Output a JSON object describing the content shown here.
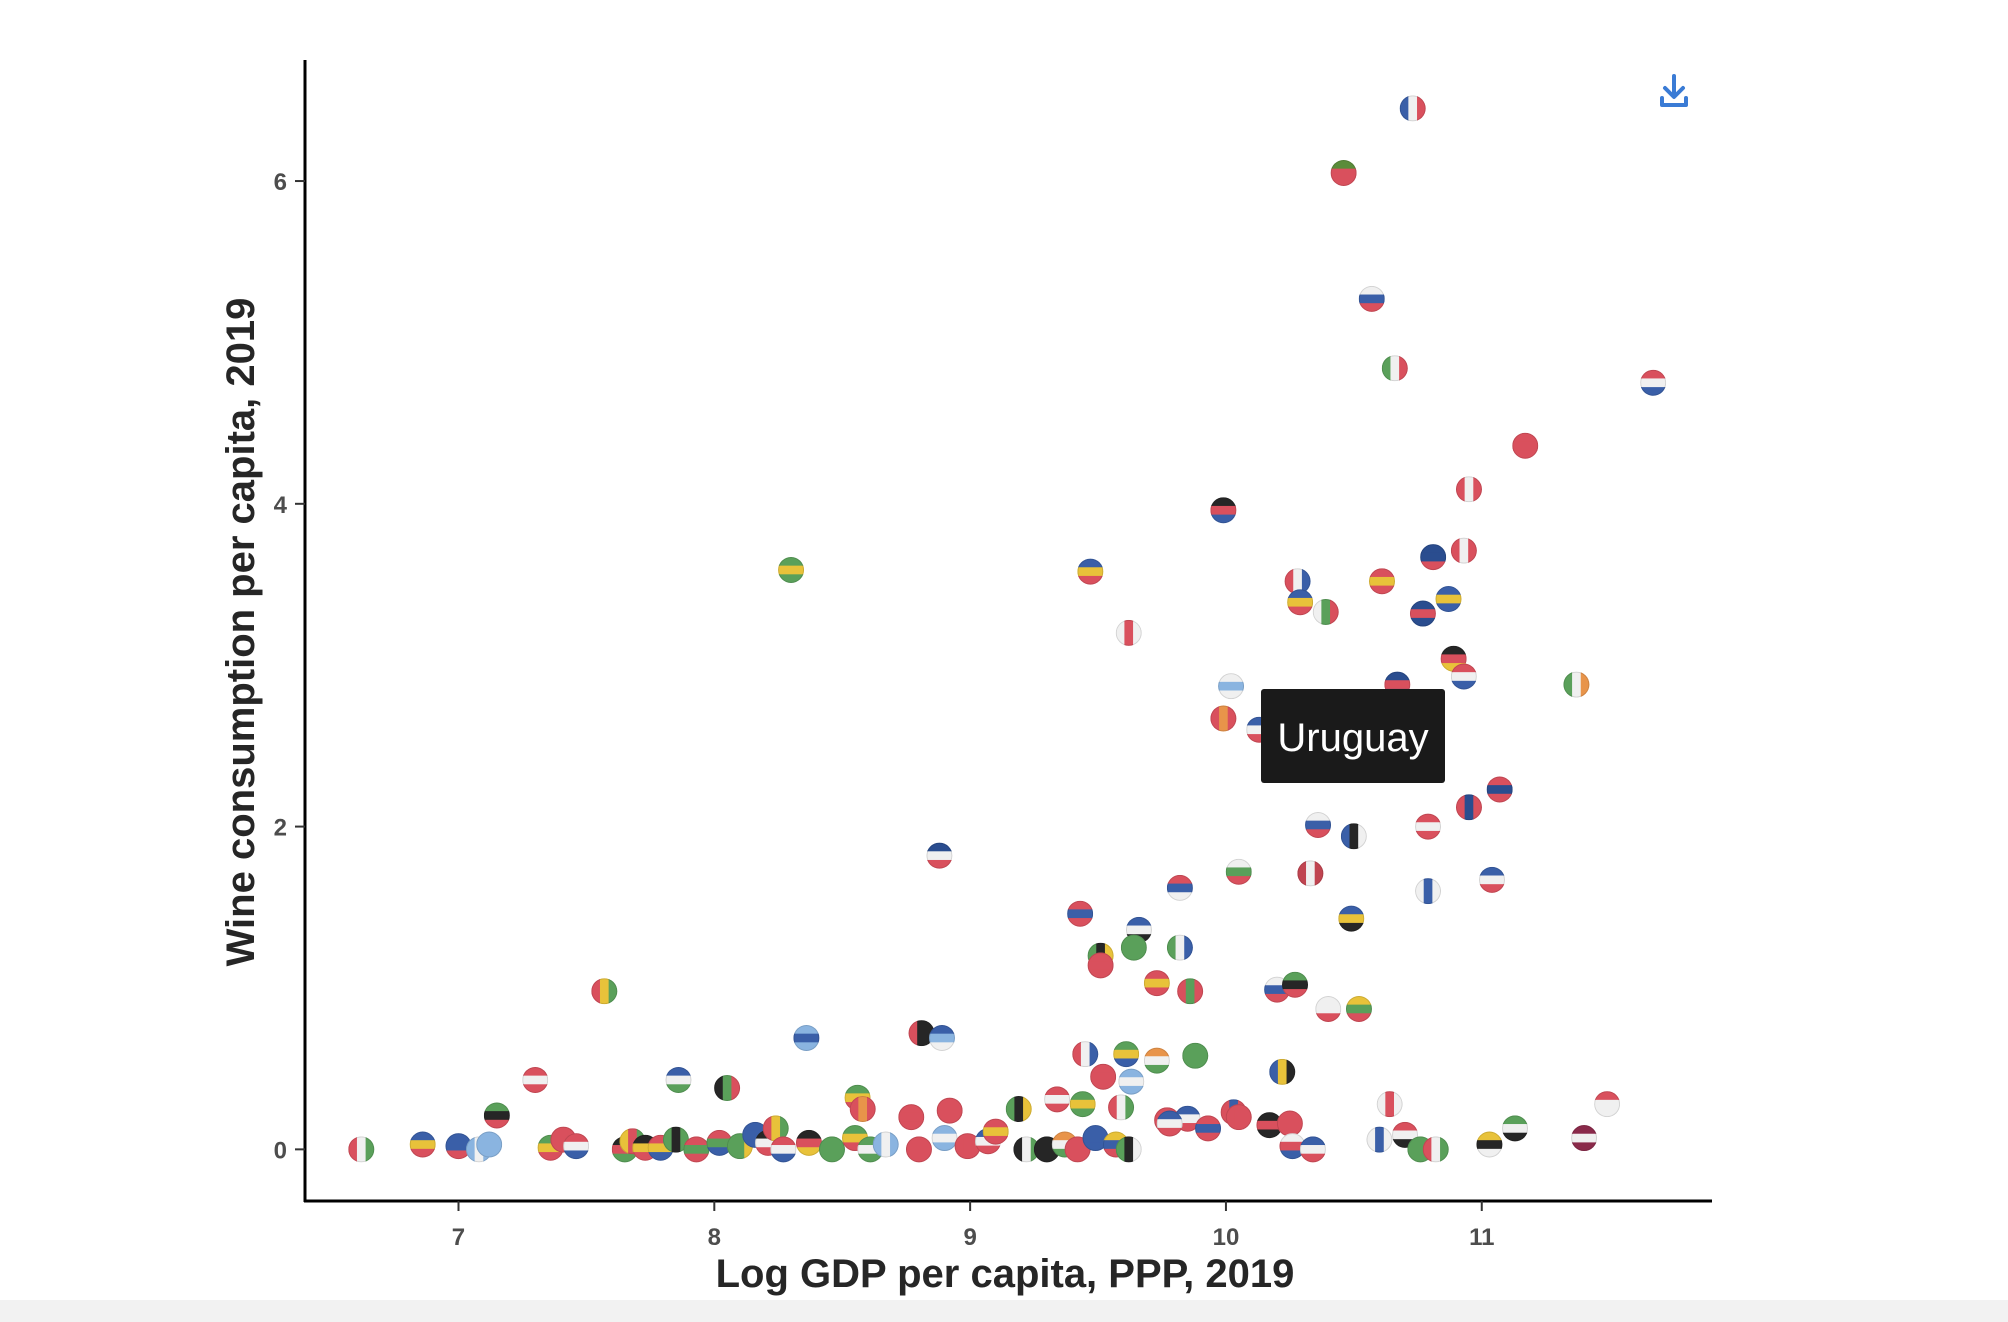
{
  "chart_data": {
    "type": "scatter",
    "title": "",
    "xlabel": "Log GDP per capita, PPP, 2019",
    "ylabel": "Wine consumption per capita, 2019",
    "xlim": [
      6.4,
      11.9
    ],
    "ylim": [
      -0.32,
      6.75
    ],
    "xticks": [
      "7",
      "8",
      "9",
      "10",
      "11"
    ],
    "yticks": [
      "0",
      "2",
      "4",
      "6"
    ],
    "marker": "country-flag",
    "tooltip": {
      "label": "Uruguay",
      "x": 10.5,
      "y": 2.6
    },
    "points": [
      {
        "x": 10.73,
        "y": 6.45,
        "colors": [
          "#3a5fa8",
          "#f0f0f0",
          "#d9505d"
        ]
      },
      {
        "x": 10.46,
        "y": 6.05,
        "colors": [
          "#5a8c3a",
          "#d9505d",
          "#d9505d"
        ]
      },
      {
        "x": 10.57,
        "y": 5.27,
        "colors": [
          "#f0f0f0",
          "#3a5fa8",
          "#d9505d"
        ]
      },
      {
        "x": 10.66,
        "y": 4.84,
        "colors": [
          "#5aa05a",
          "#f0f0f0",
          "#d9505d"
        ]
      },
      {
        "x": 11.67,
        "y": 4.75,
        "colors": [
          "#d9505d",
          "#f0f0f0",
          "#3a5fa8"
        ]
      },
      {
        "x": 11.17,
        "y": 4.36,
        "colors": [
          "#d9505d",
          "#d9505d",
          "#d9505d"
        ]
      },
      {
        "x": 10.95,
        "y": 4.09,
        "colors": [
          "#d9505d",
          "#f0f0f0",
          "#d9505d"
        ]
      },
      {
        "x": 9.99,
        "y": 3.96,
        "colors": [
          "#262626",
          "#d9505d",
          "#3a5fa8"
        ]
      },
      {
        "x": 10.81,
        "y": 3.67,
        "colors": [
          "#2a4d8f",
          "#2a4d8f",
          "#d9505d"
        ]
      },
      {
        "x": 10.93,
        "y": 3.71,
        "colors": [
          "#d9505d",
          "#f0f0f0",
          "#d9505d"
        ]
      },
      {
        "x": 8.3,
        "y": 3.59,
        "colors": [
          "#5aa05a",
          "#e8c23a",
          "#5aa05a"
        ]
      },
      {
        "x": 9.47,
        "y": 3.58,
        "colors": [
          "#3a5fa8",
          "#e8c23a",
          "#d9505d"
        ]
      },
      {
        "x": 10.28,
        "y": 3.52,
        "colors": [
          "#d9505d",
          "#f0f0f0",
          "#3a5fa8"
        ]
      },
      {
        "x": 10.61,
        "y": 3.52,
        "colors": [
          "#d9505d",
          "#e8c23a",
          "#d9505d"
        ]
      },
      {
        "x": 10.29,
        "y": 3.39,
        "colors": [
          "#3a5fa8",
          "#e8c23a",
          "#d9505d"
        ]
      },
      {
        "x": 10.39,
        "y": 3.33,
        "colors": [
          "#f0f0f0",
          "#5aa05a",
          "#d9505d"
        ]
      },
      {
        "x": 10.87,
        "y": 3.41,
        "colors": [
          "#3a5fa8",
          "#e8c23a",
          "#3a5fa8"
        ]
      },
      {
        "x": 10.77,
        "y": 3.32,
        "colors": [
          "#2a4d8f",
          "#d9505d",
          "#2a4d8f"
        ]
      },
      {
        "x": 9.62,
        "y": 3.2,
        "colors": [
          "#f0f0f0",
          "#d9505d",
          "#f0f0f0"
        ]
      },
      {
        "x": 10.89,
        "y": 3.04,
        "colors": [
          "#262626",
          "#d9505d",
          "#e8c23a"
        ]
      },
      {
        "x": 10.93,
        "y": 2.93,
        "colors": [
          "#d9505d",
          "#f0f0f0",
          "#3a5fa8"
        ]
      },
      {
        "x": 11.37,
        "y": 2.88,
        "colors": [
          "#5aa05a",
          "#f0f0f0",
          "#e8944a"
        ]
      },
      {
        "x": 10.67,
        "y": 2.88,
        "colors": [
          "#2a4d8f",
          "#d9505d",
          "#2a4d8f"
        ]
      },
      {
        "x": 10.02,
        "y": 2.87,
        "colors": [
          "#f0f0f0",
          "#8ab4e0",
          "#f0f0f0"
        ]
      },
      {
        "x": 9.99,
        "y": 2.67,
        "colors": [
          "#d9505d",
          "#e8944a",
          "#d9505d"
        ]
      },
      {
        "x": 10.13,
        "y": 2.6,
        "colors": [
          "#3a5fa8",
          "#f0f0f0",
          "#d9505d"
        ]
      },
      {
        "x": 11.07,
        "y": 2.23,
        "colors": [
          "#d9505d",
          "#2a4d8f",
          "#d9505d"
        ]
      },
      {
        "x": 10.95,
        "y": 2.12,
        "colors": [
          "#d9505d",
          "#2a4d8f",
          "#d9505d"
        ]
      },
      {
        "x": 10.36,
        "y": 2.01,
        "colors": [
          "#f0f0f0",
          "#3a5fa8",
          "#d9505d"
        ]
      },
      {
        "x": 10.79,
        "y": 2.0,
        "colors": [
          "#d9505d",
          "#f0f0f0",
          "#d9505d"
        ]
      },
      {
        "x": 10.5,
        "y": 1.94,
        "colors": [
          "#3a5fa8",
          "#262626",
          "#f0f0f0"
        ]
      },
      {
        "x": 8.88,
        "y": 1.82,
        "colors": [
          "#2a4d8f",
          "#f0f0f0",
          "#d9505d"
        ]
      },
      {
        "x": 10.05,
        "y": 1.72,
        "colors": [
          "#f0f0f0",
          "#5aa05a",
          "#d9505d"
        ]
      },
      {
        "x": 10.33,
        "y": 1.71,
        "colors": [
          "#c04450",
          "#f0f0f0",
          "#c04450"
        ]
      },
      {
        "x": 11.04,
        "y": 1.67,
        "colors": [
          "#3a5fa8",
          "#f0f0f0",
          "#d9505d"
        ]
      },
      {
        "x": 9.82,
        "y": 1.62,
        "colors": [
          "#d9505d",
          "#3a5fa8",
          "#f0f0f0"
        ]
      },
      {
        "x": 10.79,
        "y": 1.6,
        "colors": [
          "#f0f0f0",
          "#3a5fa8",
          "#f0f0f0"
        ]
      },
      {
        "x": 9.43,
        "y": 1.46,
        "colors": [
          "#d9505d",
          "#3a5fa8",
          "#d9505d"
        ]
      },
      {
        "x": 9.66,
        "y": 1.36,
        "colors": [
          "#3a5fa8",
          "#f0f0f0",
          "#262626"
        ]
      },
      {
        "x": 9.82,
        "y": 1.25,
        "colors": [
          "#5aa05a",
          "#f0f0f0",
          "#3a5fa8"
        ]
      },
      {
        "x": 10.49,
        "y": 1.43,
        "colors": [
          "#3a5fa8",
          "#e8c23a",
          "#262626"
        ]
      },
      {
        "x": 9.64,
        "y": 1.25,
        "colors": [
          "#5aa05a",
          "#5aa05a",
          "#5aa05a"
        ]
      },
      {
        "x": 9.51,
        "y": 1.2,
        "colors": [
          "#5aa05a",
          "#262626",
          "#e8c23a"
        ]
      },
      {
        "x": 9.51,
        "y": 1.14,
        "colors": [
          "#d9505d",
          "#d9505d",
          "#d9505d"
        ]
      },
      {
        "x": 9.73,
        "y": 1.03,
        "colors": [
          "#d9505d",
          "#e8c23a",
          "#d9505d"
        ]
      },
      {
        "x": 9.86,
        "y": 0.98,
        "colors": [
          "#d9505d",
          "#5aa05a",
          "#d9505d"
        ]
      },
      {
        "x": 10.2,
        "y": 0.99,
        "colors": [
          "#f0f0f0",
          "#3a5fa8",
          "#d9505d"
        ]
      },
      {
        "x": 10.27,
        "y": 1.02,
        "colors": [
          "#5aa05a",
          "#262626",
          "#d9505d"
        ]
      },
      {
        "x": 7.57,
        "y": 0.98,
        "colors": [
          "#d9505d",
          "#e8c23a",
          "#5aa05a"
        ]
      },
      {
        "x": 10.4,
        "y": 0.87,
        "colors": [
          "#f0f0f0",
          "#f0f0f0",
          "#d9505d"
        ]
      },
      {
        "x": 10.52,
        "y": 0.87,
        "colors": [
          "#e8c23a",
          "#5aa05a",
          "#d9505d"
        ]
      },
      {
        "x": 8.81,
        "y": 0.72,
        "colors": [
          "#d9505d",
          "#262626",
          "#262626"
        ]
      },
      {
        "x": 8.89,
        "y": 0.69,
        "colors": [
          "#3a5fa8",
          "#8ab4e0",
          "#f0f0f0"
        ]
      },
      {
        "x": 8.36,
        "y": 0.69,
        "colors": [
          "#8ab4e0",
          "#3a5fa8",
          "#8ab4e0"
        ]
      },
      {
        "x": 9.45,
        "y": 0.59,
        "colors": [
          "#d9505d",
          "#f0f0f0",
          "#3a5fa8"
        ]
      },
      {
        "x": 9.61,
        "y": 0.59,
        "colors": [
          "#5aa05a",
          "#e8c23a",
          "#3a5fa8"
        ]
      },
      {
        "x": 9.73,
        "y": 0.55,
        "colors": [
          "#e8944a",
          "#f0f0f0",
          "#5aa05a"
        ]
      },
      {
        "x": 9.88,
        "y": 0.58,
        "colors": [
          "#5aa05a",
          "#5aa05a",
          "#5aa05a"
        ]
      },
      {
        "x": 7.3,
        "y": 0.43,
        "colors": [
          "#d9505d",
          "#f0f0f0",
          "#d9505d"
        ]
      },
      {
        "x": 7.86,
        "y": 0.43,
        "colors": [
          "#3a5fa8",
          "#f0f0f0",
          "#5aa05a"
        ]
      },
      {
        "x": 8.05,
        "y": 0.38,
        "colors": [
          "#262626",
          "#5aa05a",
          "#d9505d"
        ]
      },
      {
        "x": 9.52,
        "y": 0.45,
        "colors": [
          "#d9505d",
          "#d9505d",
          "#d9505d"
        ]
      },
      {
        "x": 9.63,
        "y": 0.42,
        "colors": [
          "#8ab4e0",
          "#f0f0f0",
          "#8ab4e0"
        ]
      },
      {
        "x": 10.22,
        "y": 0.48,
        "colors": [
          "#3a5fa8",
          "#e8c23a",
          "#262626"
        ]
      },
      {
        "x": 7.15,
        "y": 0.21,
        "colors": [
          "#5aa05a",
          "#262626",
          "#d9505d"
        ]
      },
      {
        "x": 8.56,
        "y": 0.32,
        "colors": [
          "#5aa05a",
          "#e8c23a",
          "#d9505d"
        ]
      },
      {
        "x": 8.58,
        "y": 0.25,
        "colors": [
          "#d9505d",
          "#e8944a",
          "#d9505d"
        ]
      },
      {
        "x": 8.77,
        "y": 0.2,
        "colors": [
          "#d9505d",
          "#d9505d",
          "#d9505d"
        ]
      },
      {
        "x": 8.92,
        "y": 0.24,
        "colors": [
          "#d9505d",
          "#d9505d",
          "#d9505d"
        ]
      },
      {
        "x": 9.19,
        "y": 0.25,
        "colors": [
          "#5aa05a",
          "#262626",
          "#e8c23a"
        ]
      },
      {
        "x": 9.34,
        "y": 0.31,
        "colors": [
          "#d9505d",
          "#f0f0f0",
          "#d9505d"
        ]
      },
      {
        "x": 9.44,
        "y": 0.28,
        "colors": [
          "#5aa05a",
          "#e8c23a",
          "#5aa05a"
        ]
      },
      {
        "x": 9.59,
        "y": 0.26,
        "colors": [
          "#d9505d",
          "#f0f0f0",
          "#5aa05a"
        ]
      },
      {
        "x": 9.77,
        "y": 0.18,
        "colors": [
          "#d9505d",
          "#d9505d",
          "#d9505d"
        ]
      },
      {
        "x": 9.85,
        "y": 0.19,
        "colors": [
          "#3a5fa8",
          "#f0f0f0",
          "#d9505d"
        ]
      },
      {
        "x": 10.03,
        "y": 0.23,
        "colors": [
          "#d9505d",
          "#3a5fa8",
          "#d9505d"
        ]
      },
      {
        "x": 10.17,
        "y": 0.15,
        "colors": [
          "#262626",
          "#d9505d",
          "#262626"
        ]
      },
      {
        "x": 10.25,
        "y": 0.16,
        "colors": [
          "#d9505d",
          "#d9505d",
          "#d9505d"
        ]
      },
      {
        "x": 10.64,
        "y": 0.28,
        "colors": [
          "#f0f0f0",
          "#d9505d",
          "#f0f0f0"
        ]
      },
      {
        "x": 11.13,
        "y": 0.13,
        "colors": [
          "#5aa05a",
          "#f0f0f0",
          "#262626"
        ]
      },
      {
        "x": 11.49,
        "y": 0.28,
        "colors": [
          "#d9505d",
          "#f0f0f0",
          "#f0f0f0"
        ]
      },
      {
        "x": 6.62,
        "y": 0.0,
        "colors": [
          "#d9505d",
          "#f0f0f0",
          "#5aa05a"
        ]
      },
      {
        "x": 6.86,
        "y": 0.03,
        "colors": [
          "#3a5fa8",
          "#e8c23a",
          "#d9505d"
        ]
      },
      {
        "x": 7.0,
        "y": 0.02,
        "colors": [
          "#3a5fa8",
          "#3a5fa8",
          "#d9505d"
        ]
      },
      {
        "x": 7.08,
        "y": 0.0,
        "colors": [
          "#8ab4e0",
          "#f0f0f0",
          "#8ab4e0"
        ]
      },
      {
        "x": 7.12,
        "y": 0.03,
        "colors": [
          "#8ab4e0",
          "#8ab4e0",
          "#8ab4e0"
        ]
      },
      {
        "x": 7.36,
        "y": 0.01,
        "colors": [
          "#5aa05a",
          "#e8c23a",
          "#d9505d"
        ]
      },
      {
        "x": 7.41,
        "y": 0.06,
        "colors": [
          "#d9505d",
          "#d9505d",
          "#d9505d"
        ]
      },
      {
        "x": 7.46,
        "y": 0.02,
        "colors": [
          "#d9505d",
          "#f0f0f0",
          "#3a5fa8"
        ]
      },
      {
        "x": 7.65,
        "y": 0.0,
        "colors": [
          "#262626",
          "#d9505d",
          "#5aa05a"
        ]
      },
      {
        "x": 7.68,
        "y": 0.05,
        "colors": [
          "#e8c23a",
          "#d9505d",
          "#5aa05a"
        ]
      },
      {
        "x": 7.73,
        "y": 0.01,
        "colors": [
          "#262626",
          "#e8c23a",
          "#d9505d"
        ]
      },
      {
        "x": 7.79,
        "y": 0.01,
        "colors": [
          "#d9505d",
          "#e8c23a",
          "#3a5fa8"
        ]
      },
      {
        "x": 7.85,
        "y": 0.06,
        "colors": [
          "#5aa05a",
          "#262626",
          "#5aa05a"
        ]
      },
      {
        "x": 7.93,
        "y": 0.0,
        "colors": [
          "#d9505d",
          "#5aa05a",
          "#d9505d"
        ]
      },
      {
        "x": 8.02,
        "y": 0.04,
        "colors": [
          "#d9505d",
          "#5aa05a",
          "#3a5fa8"
        ]
      },
      {
        "x": 8.1,
        "y": 0.02,
        "colors": [
          "#5aa05a",
          "#5aa05a",
          "#e8c23a"
        ]
      },
      {
        "x": 8.16,
        "y": 0.09,
        "colors": [
          "#3a5fa8",
          "#3a5fa8",
          "#3a5fa8"
        ]
      },
      {
        "x": 8.21,
        "y": 0.04,
        "colors": [
          "#262626",
          "#f0f0f0",
          "#d9505d"
        ]
      },
      {
        "x": 8.24,
        "y": 0.13,
        "colors": [
          "#d9505d",
          "#e8c23a",
          "#5aa05a"
        ]
      },
      {
        "x": 8.27,
        "y": 0.0,
        "colors": [
          "#d9505d",
          "#f0f0f0",
          "#3a5fa8"
        ]
      },
      {
        "x": 8.37,
        "y": 0.04,
        "colors": [
          "#262626",
          "#d9505d",
          "#e8c23a"
        ]
      },
      {
        "x": 8.46,
        "y": 0.0,
        "colors": [
          "#5aa05a",
          "#5aa05a",
          "#5aa05a"
        ]
      },
      {
        "x": 8.55,
        "y": 0.07,
        "colors": [
          "#5aa05a",
          "#e8c23a",
          "#d9505d"
        ]
      },
      {
        "x": 8.61,
        "y": 0.0,
        "colors": [
          "#5aa05a",
          "#f0f0f0",
          "#5aa05a"
        ]
      },
      {
        "x": 8.67,
        "y": 0.03,
        "colors": [
          "#8ab4e0",
          "#f0f0f0",
          "#8ab4e0"
        ]
      },
      {
        "x": 8.8,
        "y": 0.0,
        "colors": [
          "#d9505d",
          "#d9505d",
          "#d9505d"
        ]
      },
      {
        "x": 8.9,
        "y": 0.07,
        "colors": [
          "#8ab4e0",
          "#f0f0f0",
          "#8ab4e0"
        ]
      },
      {
        "x": 8.99,
        "y": 0.02,
        "colors": [
          "#d9505d",
          "#d9505d",
          "#d9505d"
        ]
      },
      {
        "x": 9.07,
        "y": 0.05,
        "colors": [
          "#3a5fa8",
          "#f0f0f0",
          "#d9505d"
        ]
      },
      {
        "x": 9.1,
        "y": 0.11,
        "colors": [
          "#d9505d",
          "#e8c23a",
          "#d9505d"
        ]
      },
      {
        "x": 9.22,
        "y": 0.0,
        "colors": [
          "#262626",
          "#f0f0f0",
          "#5aa05a"
        ]
      },
      {
        "x": 9.3,
        "y": 0.0,
        "colors": [
          "#262626",
          "#262626",
          "#262626"
        ]
      },
      {
        "x": 9.37,
        "y": 0.03,
        "colors": [
          "#e8944a",
          "#f0f0f0",
          "#5aa05a"
        ]
      },
      {
        "x": 9.42,
        "y": 0.0,
        "colors": [
          "#d9505d",
          "#d9505d",
          "#d9505d"
        ]
      },
      {
        "x": 9.49,
        "y": 0.07,
        "colors": [
          "#3a5fa8",
          "#3a5fa8",
          "#3a5fa8"
        ]
      },
      {
        "x": 9.57,
        "y": 0.03,
        "colors": [
          "#e8c23a",
          "#3a5fa8",
          "#d9505d"
        ]
      },
      {
        "x": 9.62,
        "y": 0.0,
        "colors": [
          "#5aa05a",
          "#262626",
          "#f0f0f0"
        ]
      },
      {
        "x": 9.78,
        "y": 0.16,
        "colors": [
          "#3a5fa8",
          "#f0f0f0",
          "#d9505d"
        ]
      },
      {
        "x": 9.93,
        "y": 0.13,
        "colors": [
          "#d9505d",
          "#3a5fa8",
          "#d9505d"
        ]
      },
      {
        "x": 10.05,
        "y": 0.2,
        "colors": [
          "#d9505d",
          "#d9505d",
          "#d9505d"
        ]
      },
      {
        "x": 10.26,
        "y": 0.02,
        "colors": [
          "#f0f0f0",
          "#d9505d",
          "#3a5fa8"
        ]
      },
      {
        "x": 10.34,
        "y": 0.0,
        "colors": [
          "#3a5fa8",
          "#f0f0f0",
          "#d9505d"
        ]
      },
      {
        "x": 10.6,
        "y": 0.06,
        "colors": [
          "#f0f0f0",
          "#3a5fa8",
          "#f0f0f0"
        ]
      },
      {
        "x": 10.7,
        "y": 0.09,
        "colors": [
          "#d9505d",
          "#f0f0f0",
          "#262626"
        ]
      },
      {
        "x": 10.76,
        "y": 0.0,
        "colors": [
          "#5aa05a",
          "#5aa05a",
          "#5aa05a"
        ]
      },
      {
        "x": 10.82,
        "y": 0.0,
        "colors": [
          "#d9505d",
          "#f0f0f0",
          "#5aa05a"
        ]
      },
      {
        "x": 11.03,
        "y": 0.03,
        "colors": [
          "#e8c23a",
          "#262626",
          "#f0f0f0"
        ]
      },
      {
        "x": 11.4,
        "y": 0.07,
        "colors": [
          "#8a2a4a",
          "#f0f0f0",
          "#8a2a4a"
        ]
      }
    ]
  },
  "toolbar": {
    "download_icon": "download-icon",
    "download_color": "#3a7bd5"
  }
}
